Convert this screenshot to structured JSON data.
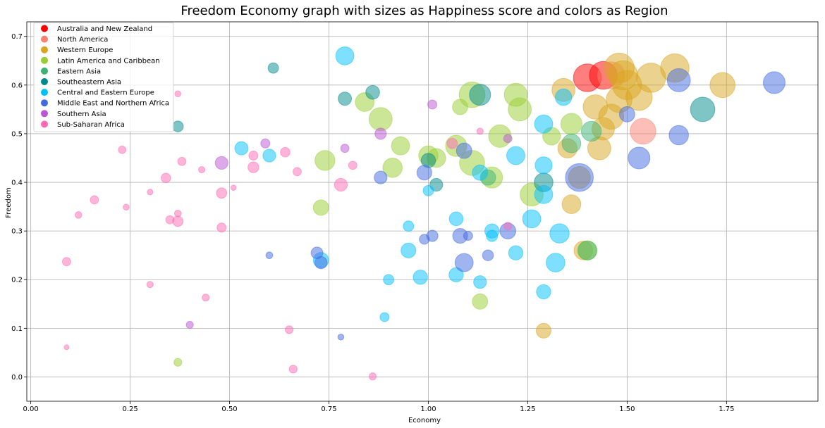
{
  "chart_data": {
    "type": "scatter",
    "title": "Freedom Economy graph with sizes as Happiness score and colors as Region",
    "xlabel": "Economy",
    "ylabel": "Freedom",
    "xlim": [
      -0.01,
      1.98
    ],
    "ylim": [
      -0.05,
      0.73
    ],
    "xticks": [
      "0.00",
      "0.25",
      "0.50",
      "0.75",
      "1.00",
      "1.25",
      "1.50",
      "1.75"
    ],
    "yticks": [
      "0.0",
      "0.1",
      "0.2",
      "0.3",
      "0.4",
      "0.5",
      "0.6",
      "0.7"
    ],
    "grid": true,
    "legend_position": "top-left",
    "size_encoding": "Happiness score",
    "color_encoding": "Region",
    "regions": [
      {
        "name": "Australia and New Zealand",
        "color": "#ff0000"
      },
      {
        "name": "North America",
        "color": "#fa8072"
      },
      {
        "name": "Western Europe",
        "color": "#daa520"
      },
      {
        "name": "Latin America and Caribbean",
        "color": "#9acd32"
      },
      {
        "name": "Eastern Asia",
        "color": "#3cb371"
      },
      {
        "name": "Southeastern Asia",
        "color": "#008b8b"
      },
      {
        "name": "Central and Eastern Europe",
        "color": "#00bfff"
      },
      {
        "name": "Middle East and Northern Africa",
        "color": "#4169e1"
      },
      {
        "name": "Southern Asia",
        "color": "#ba55d3"
      },
      {
        "name": "Sub-Saharan Africa",
        "color": "#ff69b4"
      }
    ],
    "points": [
      {
        "region": 0,
        "x": 1.4,
        "y": 0.615,
        "happiness": 7.3
      },
      {
        "region": 0,
        "x": 1.44,
        "y": 0.62,
        "happiness": 7.3
      },
      {
        "region": 1,
        "x": 1.54,
        "y": 0.505,
        "happiness": 7.0
      },
      {
        "region": 1,
        "x": 1.46,
        "y": 0.62,
        "happiness": 7.2
      },
      {
        "region": 2,
        "x": 1.48,
        "y": 0.635,
        "happiness": 7.6
      },
      {
        "region": 2,
        "x": 1.49,
        "y": 0.62,
        "happiness": 7.5
      },
      {
        "region": 2,
        "x": 1.5,
        "y": 0.6,
        "happiness": 7.5
      },
      {
        "region": 2,
        "x": 1.56,
        "y": 0.615,
        "happiness": 7.5
      },
      {
        "region": 2,
        "x": 1.62,
        "y": 0.635,
        "happiness": 7.4
      },
      {
        "region": 2,
        "x": 1.74,
        "y": 0.6,
        "happiness": 6.9
      },
      {
        "region": 2,
        "x": 1.53,
        "y": 0.575,
        "happiness": 7.1
      },
      {
        "region": 2,
        "x": 1.46,
        "y": 0.535,
        "happiness": 6.9
      },
      {
        "region": 2,
        "x": 1.34,
        "y": 0.59,
        "happiness": 6.6
      },
      {
        "region": 2,
        "x": 1.48,
        "y": 0.57,
        "happiness": 7.0
      },
      {
        "region": 2,
        "x": 1.42,
        "y": 0.555,
        "happiness": 6.8
      },
      {
        "region": 2,
        "x": 1.44,
        "y": 0.51,
        "happiness": 6.5
      },
      {
        "region": 2,
        "x": 1.43,
        "y": 0.47,
        "happiness": 6.6
      },
      {
        "region": 2,
        "x": 1.35,
        "y": 0.47,
        "happiness": 6.0
      },
      {
        "region": 2,
        "x": 1.38,
        "y": 0.41,
        "happiness": 6.4
      },
      {
        "region": 2,
        "x": 1.36,
        "y": 0.355,
        "happiness": 5.9
      },
      {
        "region": 2,
        "x": 1.39,
        "y": 0.26,
        "happiness": 5.9
      },
      {
        "region": 2,
        "x": 1.29,
        "y": 0.095,
        "happiness": 5.2
      },
      {
        "region": 3,
        "x": 1.11,
        "y": 0.58,
        "happiness": 7.0
      },
      {
        "region": 3,
        "x": 1.22,
        "y": 0.58,
        "happiness": 6.6
      },
      {
        "region": 3,
        "x": 1.23,
        "y": 0.55,
        "happiness": 6.6
      },
      {
        "region": 3,
        "x": 1.11,
        "y": 0.44,
        "happiness": 6.9
      },
      {
        "region": 3,
        "x": 0.88,
        "y": 0.53,
        "happiness": 6.6
      },
      {
        "region": 3,
        "x": 0.84,
        "y": 0.565,
        "happiness": 5.9
      },
      {
        "region": 3,
        "x": 1.18,
        "y": 0.495,
        "happiness": 6.5
      },
      {
        "region": 3,
        "x": 1.07,
        "y": 0.475,
        "happiness": 6.3
      },
      {
        "region": 3,
        "x": 1.08,
        "y": 0.555,
        "happiness": 5.3
      },
      {
        "region": 3,
        "x": 1.02,
        "y": 0.45,
        "happiness": 5.9
      },
      {
        "region": 3,
        "x": 1.0,
        "y": 0.455,
        "happiness": 6.0
      },
      {
        "region": 3,
        "x": 0.93,
        "y": 0.475,
        "happiness": 5.8
      },
      {
        "region": 3,
        "x": 0.91,
        "y": 0.43,
        "happiness": 6.0
      },
      {
        "region": 3,
        "x": 0.74,
        "y": 0.445,
        "happiness": 6.1
      },
      {
        "region": 3,
        "x": 1.16,
        "y": 0.41,
        "happiness": 6.3
      },
      {
        "region": 3,
        "x": 1.26,
        "y": 0.375,
        "happiness": 6.6
      },
      {
        "region": 3,
        "x": 1.31,
        "y": 0.495,
        "happiness": 5.7
      },
      {
        "region": 3,
        "x": 1.36,
        "y": 0.52,
        "happiness": 6.3
      },
      {
        "region": 3,
        "x": 0.73,
        "y": 0.348,
        "happiness": 5.3
      },
      {
        "region": 3,
        "x": 1.4,
        "y": 0.26,
        "happiness": 6.0
      },
      {
        "region": 3,
        "x": 1.13,
        "y": 0.155,
        "happiness": 5.3
      },
      {
        "region": 3,
        "x": 0.37,
        "y": 0.03,
        "happiness": 3.7
      },
      {
        "region": 4,
        "x": 1.41,
        "y": 0.505,
        "happiness": 6.1
      },
      {
        "region": 4,
        "x": 1.36,
        "y": 0.48,
        "happiness": 5.9
      },
      {
        "region": 4,
        "x": 1.15,
        "y": 0.41,
        "happiness": 5.3
      },
      {
        "region": 4,
        "x": 1.4,
        "y": 0.26,
        "happiness": 5.9
      },
      {
        "region": 5,
        "x": 1.69,
        "y": 0.55,
        "happiness": 6.8
      },
      {
        "region": 5,
        "x": 1.13,
        "y": 0.58,
        "happiness": 6.3
      },
      {
        "region": 5,
        "x": 0.86,
        "y": 0.585,
        "happiness": 5.0
      },
      {
        "region": 5,
        "x": 0.79,
        "y": 0.572,
        "happiness": 4.9
      },
      {
        "region": 5,
        "x": 1.29,
        "y": 0.4,
        "happiness": 5.9
      },
      {
        "region": 5,
        "x": 1.02,
        "y": 0.395,
        "happiness": 4.8
      },
      {
        "region": 5,
        "x": 0.61,
        "y": 0.635,
        "happiness": 4.3
      },
      {
        "region": 5,
        "x": 0.37,
        "y": 0.515,
        "happiness": 4.4
      },
      {
        "region": 5,
        "x": 1.0,
        "y": 0.445,
        "happiness": 5.1
      },
      {
        "region": 6,
        "x": 0.79,
        "y": 0.66,
        "happiness": 5.8
      },
      {
        "region": 6,
        "x": 1.34,
        "y": 0.575,
        "happiness": 5.5
      },
      {
        "region": 6,
        "x": 1.29,
        "y": 0.52,
        "happiness": 5.8
      },
      {
        "region": 6,
        "x": 1.22,
        "y": 0.455,
        "happiness": 5.8
      },
      {
        "region": 6,
        "x": 1.29,
        "y": 0.435,
        "happiness": 5.6
      },
      {
        "region": 6,
        "x": 1.13,
        "y": 0.42,
        "happiness": 5.3
      },
      {
        "region": 6,
        "x": 1.29,
        "y": 0.375,
        "happiness": 5.8
      },
      {
        "region": 6,
        "x": 1.26,
        "y": 0.325,
        "happiness": 5.8
      },
      {
        "region": 6,
        "x": 1.33,
        "y": 0.295,
        "happiness": 6.0
      },
      {
        "region": 6,
        "x": 1.32,
        "y": 0.235,
        "happiness": 5.9
      },
      {
        "region": 6,
        "x": 1.22,
        "y": 0.255,
        "happiness": 5.1
      },
      {
        "region": 6,
        "x": 1.16,
        "y": 0.3,
        "happiness": 5.1
      },
      {
        "region": 6,
        "x": 1.16,
        "y": 0.29,
        "happiness": 4.5
      },
      {
        "region": 6,
        "x": 1.07,
        "y": 0.325,
        "happiness": 5.0
      },
      {
        "region": 6,
        "x": 1.07,
        "y": 0.21,
        "happiness": 5.1
      },
      {
        "region": 6,
        "x": 1.13,
        "y": 0.195,
        "happiness": 4.8
      },
      {
        "region": 6,
        "x": 1.29,
        "y": 0.175,
        "happiness": 5.1
      },
      {
        "region": 6,
        "x": 0.98,
        "y": 0.205,
        "happiness": 5.1
      },
      {
        "region": 6,
        "x": 0.95,
        "y": 0.26,
        "happiness": 5.2
      },
      {
        "region": 6,
        "x": 0.95,
        "y": 0.31,
        "happiness": 4.3
      },
      {
        "region": 6,
        "x": 0.9,
        "y": 0.2,
        "happiness": 4.3
      },
      {
        "region": 6,
        "x": 0.89,
        "y": 0.123,
        "happiness": 4.0
      },
      {
        "region": 6,
        "x": 0.73,
        "y": 0.24,
        "happiness": 5.3
      },
      {
        "region": 6,
        "x": 0.53,
        "y": 0.47,
        "happiness": 4.9
      },
      {
        "region": 6,
        "x": 0.6,
        "y": 0.455,
        "happiness": 4.8
      },
      {
        "region": 6,
        "x": 1.0,
        "y": 0.383,
        "happiness": 4.3
      },
      {
        "region": 7,
        "x": 1.87,
        "y": 0.605,
        "happiness": 6.4
      },
      {
        "region": 7,
        "x": 1.63,
        "y": 0.61,
        "happiness": 6.6
      },
      {
        "region": 7,
        "x": 1.5,
        "y": 0.54,
        "happiness": 5.3
      },
      {
        "region": 7,
        "x": 1.63,
        "y": 0.497,
        "happiness": 6.0
      },
      {
        "region": 7,
        "x": 1.53,
        "y": 0.45,
        "happiness": 6.4
      },
      {
        "region": 7,
        "x": 1.38,
        "y": 0.41,
        "happiness": 7.3
      },
      {
        "region": 7,
        "x": 1.09,
        "y": 0.465,
        "happiness": 5.3
      },
      {
        "region": 7,
        "x": 0.99,
        "y": 0.42,
        "happiness": 5.2
      },
      {
        "region": 7,
        "x": 0.88,
        "y": 0.41,
        "happiness": 4.8
      },
      {
        "region": 7,
        "x": 1.2,
        "y": 0.3,
        "happiness": 5.4
      },
      {
        "region": 7,
        "x": 1.08,
        "y": 0.29,
        "happiness": 5.2
      },
      {
        "region": 7,
        "x": 1.1,
        "y": 0.29,
        "happiness": 4.0
      },
      {
        "region": 7,
        "x": 1.01,
        "y": 0.29,
        "happiness": 4.5
      },
      {
        "region": 7,
        "x": 0.99,
        "y": 0.283,
        "happiness": 4.2
      },
      {
        "region": 7,
        "x": 1.15,
        "y": 0.25,
        "happiness": 4.4
      },
      {
        "region": 7,
        "x": 1.09,
        "y": 0.235,
        "happiness": 5.8
      },
      {
        "region": 7,
        "x": 0.72,
        "y": 0.255,
        "happiness": 4.6
      },
      {
        "region": 7,
        "x": 0.73,
        "y": 0.235,
        "happiness": 4.7
      },
      {
        "region": 7,
        "x": 0.6,
        "y": 0.25,
        "happiness": 3.4
      },
      {
        "region": 7,
        "x": 0.78,
        "y": 0.082,
        "happiness": 3.2
      },
      {
        "region": 8,
        "x": 1.01,
        "y": 0.56,
        "happiness": 4.0
      },
      {
        "region": 8,
        "x": 0.88,
        "y": 0.5,
        "happiness": 4.5
      },
      {
        "region": 8,
        "x": 0.79,
        "y": 0.47,
        "happiness": 3.8
      },
      {
        "region": 8,
        "x": 0.59,
        "y": 0.48,
        "happiness": 4.0
      },
      {
        "region": 8,
        "x": 0.48,
        "y": 0.44,
        "happiness": 4.8
      },
      {
        "region": 8,
        "x": 1.2,
        "y": 0.49,
        "happiness": 3.8
      },
      {
        "region": 8,
        "x": 0.4,
        "y": 0.107,
        "happiness": 3.5
      },
      {
        "region": 9,
        "x": 1.06,
        "y": 0.48,
        "happiness": 4.3
      },
      {
        "region": 9,
        "x": 1.13,
        "y": 0.505,
        "happiness": 3.3
      },
      {
        "region": 9,
        "x": 0.37,
        "y": 0.582,
        "happiness": 3.2
      },
      {
        "region": 9,
        "x": 0.23,
        "y": 0.467,
        "happiness": 3.6
      },
      {
        "region": 9,
        "x": 0.38,
        "y": 0.443,
        "happiness": 3.8
      },
      {
        "region": 9,
        "x": 0.43,
        "y": 0.426,
        "happiness": 3.3
      },
      {
        "region": 9,
        "x": 0.34,
        "y": 0.409,
        "happiness": 4.1
      },
      {
        "region": 9,
        "x": 0.3,
        "y": 0.38,
        "happiness": 3.1
      },
      {
        "region": 9,
        "x": 0.16,
        "y": 0.364,
        "happiness": 3.8
      },
      {
        "region": 9,
        "x": 0.24,
        "y": 0.349,
        "happiness": 3.2
      },
      {
        "region": 9,
        "x": 0.12,
        "y": 0.333,
        "happiness": 3.4
      },
      {
        "region": 9,
        "x": 0.35,
        "y": 0.323,
        "happiness": 3.8
      },
      {
        "region": 9,
        "x": 0.37,
        "y": 0.336,
        "happiness": 3.4
      },
      {
        "region": 9,
        "x": 0.37,
        "y": 0.32,
        "happiness": 4.3
      },
      {
        "region": 9,
        "x": 0.48,
        "y": 0.378,
        "happiness": 4.3
      },
      {
        "region": 9,
        "x": 0.51,
        "y": 0.389,
        "happiness": 3.0
      },
      {
        "region": 9,
        "x": 0.48,
        "y": 0.307,
        "happiness": 4.0
      },
      {
        "region": 9,
        "x": 0.56,
        "y": 0.431,
        "happiness": 4.4
      },
      {
        "region": 9,
        "x": 0.56,
        "y": 0.455,
        "happiness": 4.0
      },
      {
        "region": 9,
        "x": 0.64,
        "y": 0.462,
        "happiness": 4.1
      },
      {
        "region": 9,
        "x": 0.67,
        "y": 0.422,
        "happiness": 3.8
      },
      {
        "region": 9,
        "x": 0.78,
        "y": 0.395,
        "happiness": 4.8
      },
      {
        "region": 9,
        "x": 0.81,
        "y": 0.435,
        "happiness": 3.8
      },
      {
        "region": 9,
        "x": 0.09,
        "y": 0.237,
        "happiness": 3.8
      },
      {
        "region": 9,
        "x": 0.3,
        "y": 0.19,
        "happiness": 3.3
      },
      {
        "region": 9,
        "x": 0.44,
        "y": 0.163,
        "happiness": 3.5
      },
      {
        "region": 9,
        "x": 0.65,
        "y": 0.097,
        "happiness": 3.7
      },
      {
        "region": 9,
        "x": 0.09,
        "y": 0.061,
        "happiness": 2.8
      },
      {
        "region": 9,
        "x": 0.66,
        "y": 0.016,
        "happiness": 3.7
      },
      {
        "region": 9,
        "x": 0.86,
        "y": 0.001,
        "happiness": 3.5
      },
      {
        "region": 9,
        "x": 1.2,
        "y": 0.31,
        "happiness": 3.7
      }
    ]
  }
}
